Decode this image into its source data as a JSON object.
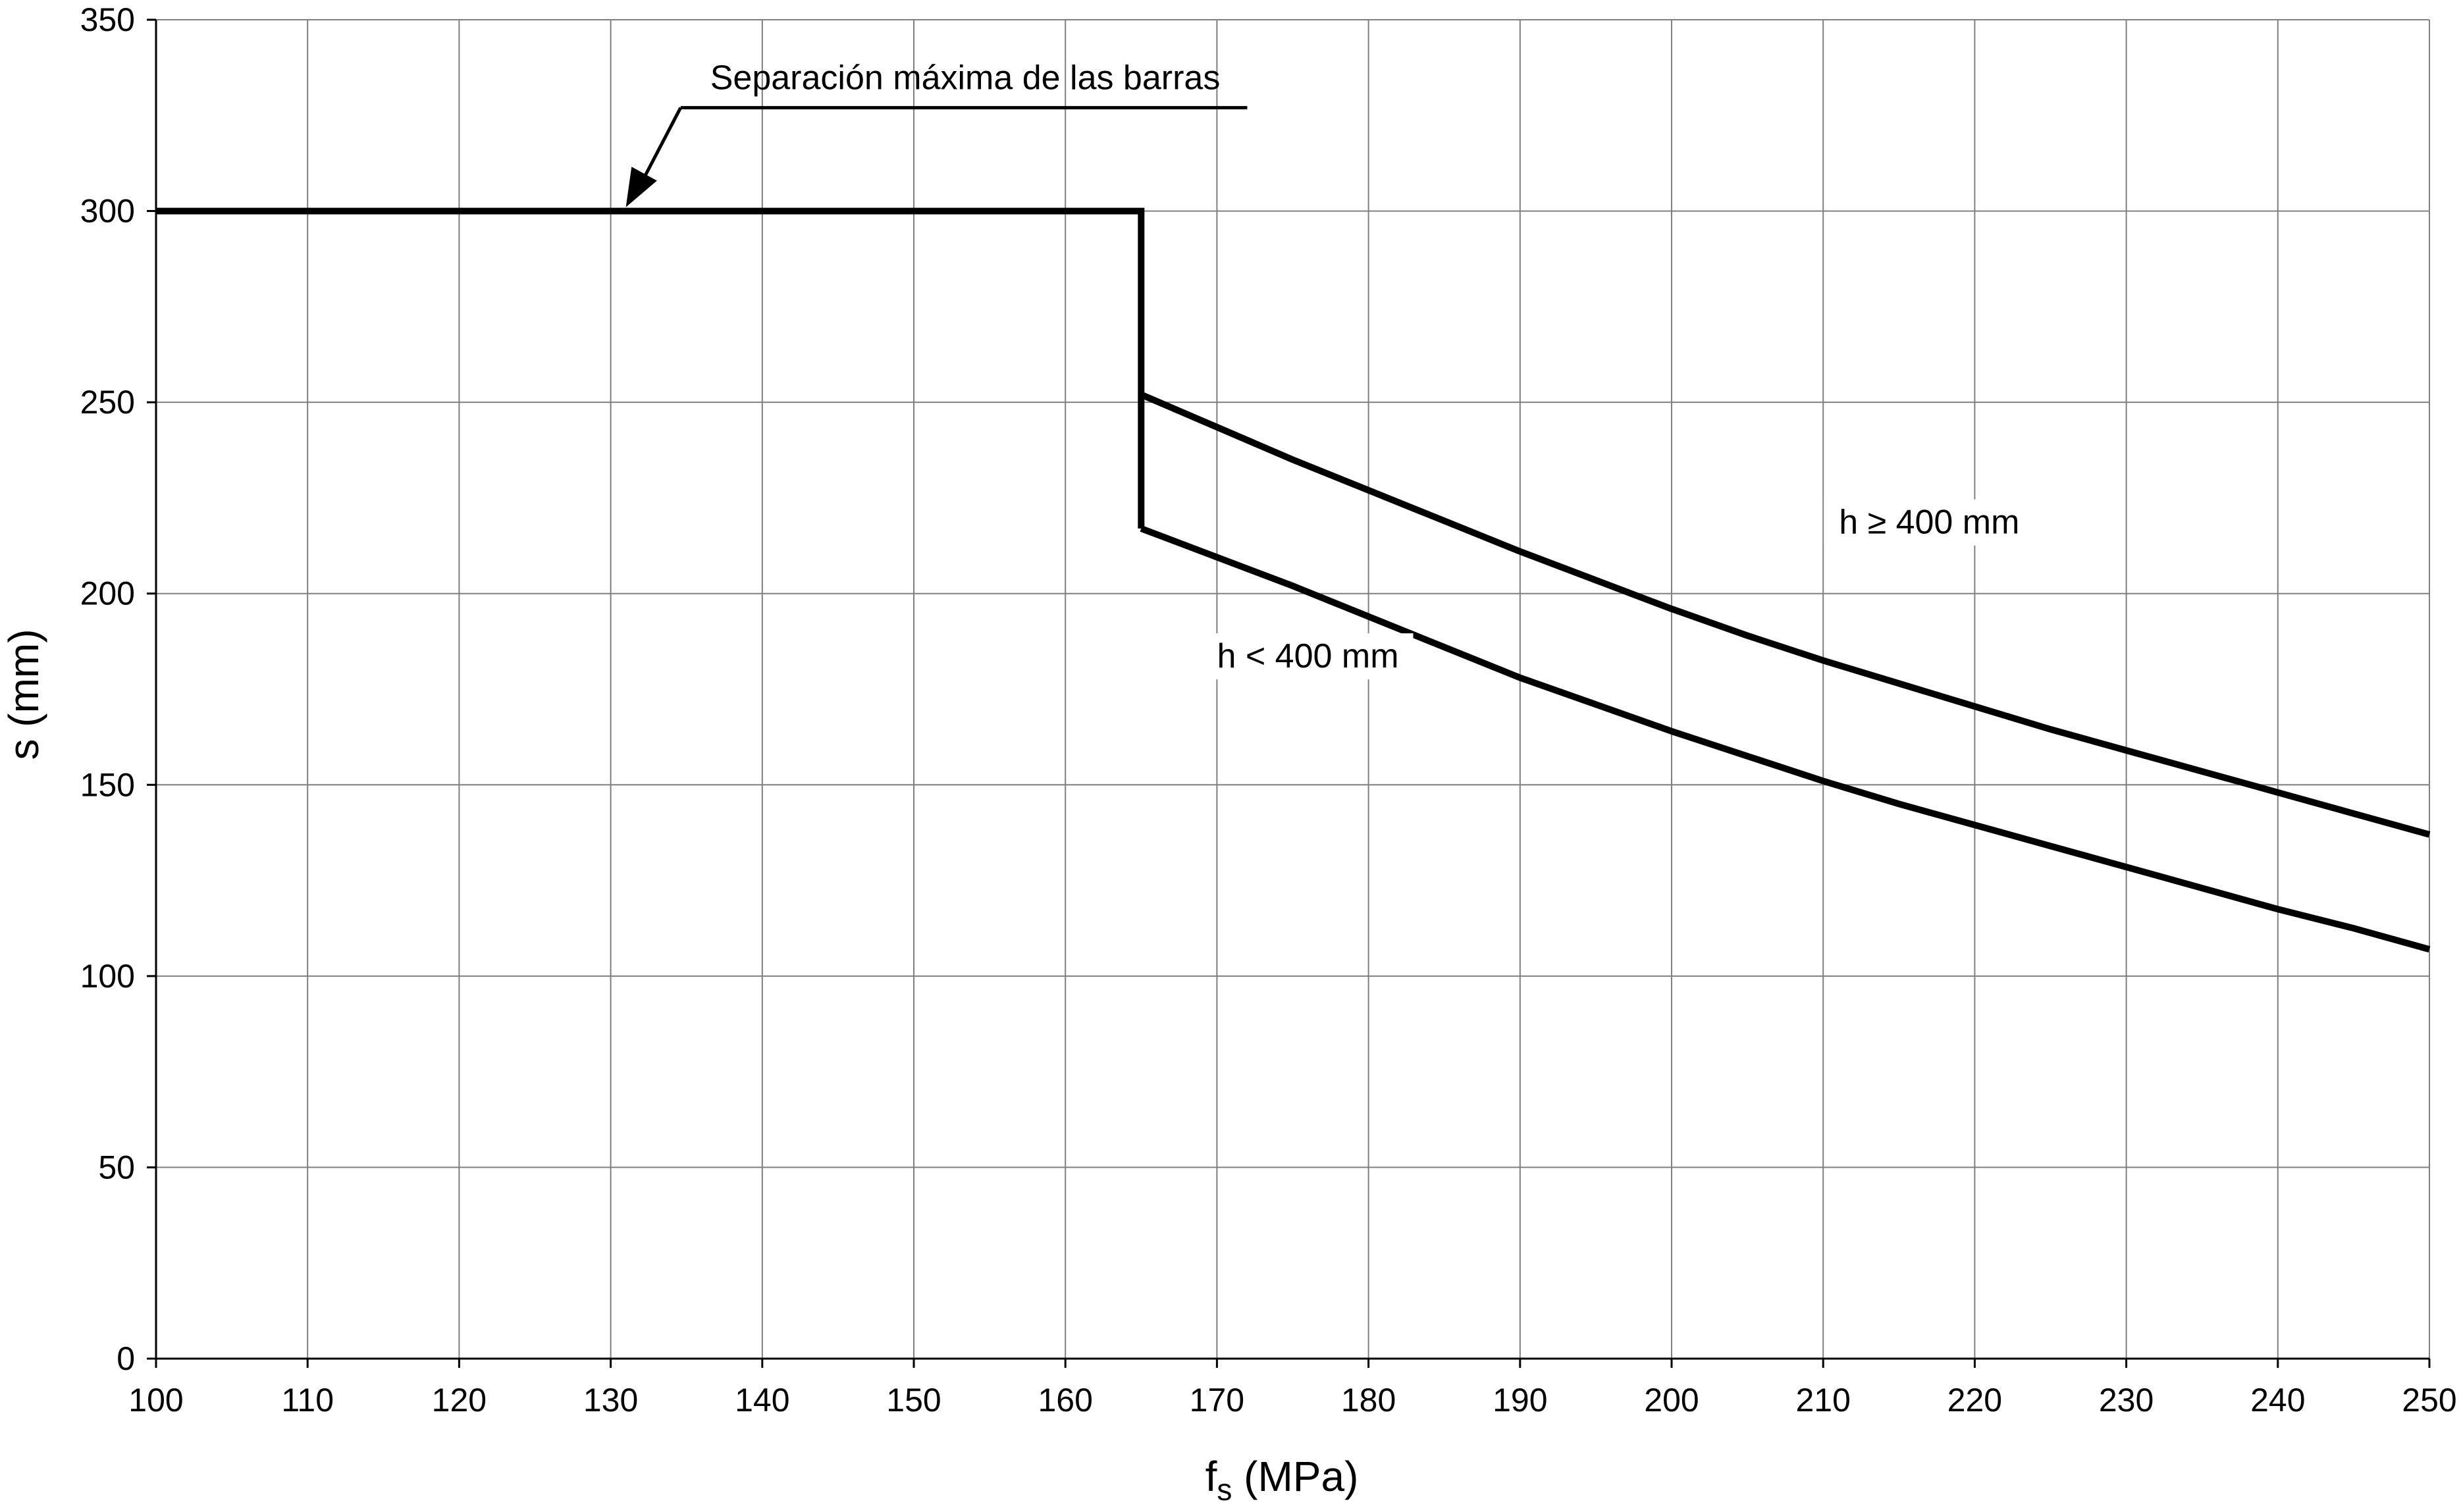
{
  "chart_data": {
    "type": "line",
    "title": "",
    "xlabel": "f",
    "xlabel_sub": "s",
    "xlabel_unit": " (MPa)",
    "ylabel": "s (mm)",
    "xlim": [
      100,
      250
    ],
    "ylim": [
      0,
      350
    ],
    "x_ticks": [
      100,
      110,
      120,
      130,
      140,
      150,
      160,
      170,
      180,
      190,
      200,
      210,
      220,
      230,
      240,
      250
    ],
    "y_ticks": [
      0,
      50,
      100,
      150,
      200,
      250,
      300,
      350
    ],
    "grid": true,
    "legend": "none",
    "line_color": "#000000",
    "series": [
      {
        "label_key": "max_spacing",
        "points": [
          [
            100,
            300
          ],
          [
            165,
            300
          ],
          [
            165,
            217
          ]
        ]
      },
      {
        "label_key": "h_lt_400",
        "points": [
          [
            165,
            217
          ],
          [
            170,
            209.5
          ],
          [
            175,
            202
          ],
          [
            180,
            194
          ],
          [
            185,
            186
          ],
          [
            190,
            178
          ],
          [
            195,
            171
          ],
          [
            200,
            164
          ],
          [
            205,
            157.5
          ],
          [
            210,
            151
          ],
          [
            215,
            145
          ],
          [
            220,
            139.5
          ],
          [
            225,
            134
          ],
          [
            230,
            128.5
          ],
          [
            235,
            123
          ],
          [
            240,
            117.5
          ],
          [
            245,
            112.5
          ],
          [
            250,
            107
          ]
        ]
      },
      {
        "label_key": "h_ge_400",
        "points": [
          [
            165,
            252
          ],
          [
            170,
            243.5
          ],
          [
            175,
            235
          ],
          [
            180,
            227
          ],
          [
            185,
            219
          ],
          [
            190,
            211
          ],
          [
            195,
            203.5
          ],
          [
            200,
            196
          ],
          [
            205,
            189
          ],
          [
            210,
            182.5
          ],
          [
            215,
            176.5
          ],
          [
            220,
            170.5
          ],
          [
            225,
            164.5
          ],
          [
            230,
            159
          ],
          [
            235,
            153.5
          ],
          [
            240,
            148
          ],
          [
            245,
            142.5
          ],
          [
            250,
            137
          ]
        ]
      }
    ],
    "annotations": {
      "max_spacing": {
        "text": "Separación máxima de las barras",
        "at": [
          131,
          301
        ],
        "text_at": [
          137,
          327
        ],
        "line_end": [
          172,
          327
        ]
      },
      "h_lt_400": {
        "text": "h < 400 mm",
        "at": [
          176,
          181
        ]
      },
      "h_ge_400": {
        "text": "h ≥ 400 mm",
        "at": [
          217,
          216
        ]
      }
    }
  }
}
